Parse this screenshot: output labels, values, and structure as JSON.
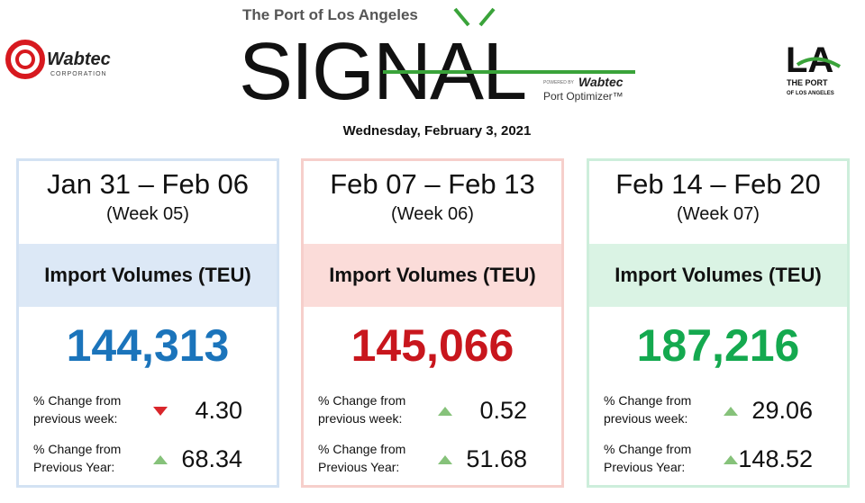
{
  "header": {
    "wabtec_logo": {
      "name": "Wabtec",
      "sub": "CORPORATION"
    },
    "kicker": "The Port of Los Angeles",
    "logo": "SIGNAL",
    "powered_by": "POWERED BY",
    "powered_brand": "Wabtec",
    "product": "Port Optimizer™",
    "la_logo": {
      "mark": "LA",
      "line1": "THE PORT",
      "line2": "OF LOS ANGELES"
    },
    "date": "Wednesday, February 3, 2021"
  },
  "cards": [
    {
      "range": "Jan 31 – Feb 06",
      "week": "(Week 05)",
      "metric": "Import Volumes (TEU)",
      "value": "144,313",
      "color": "#1b74bb",
      "band": "#dce8f6",
      "border": "#d3e2f3",
      "rows": [
        {
          "label1": "% Change from",
          "label2": "previous week:",
          "trend": "down",
          "value": "4.30"
        },
        {
          "label1": "% Change from",
          "label2": "Previous Year:",
          "trend": "up",
          "value": "68.34"
        }
      ]
    },
    {
      "range": "Feb 07 – Feb 13",
      "week": "(Week 06)",
      "metric": "Import Volumes (TEU)",
      "value": "145,066",
      "color": "#c8161d",
      "band": "#fbdcd9",
      "border": "#f6cfcb",
      "rows": [
        {
          "label1": "% Change from",
          "label2": "previous week:",
          "trend": "up",
          "value": "0.52"
        },
        {
          "label1": "% Change from",
          "label2": "Previous Year:",
          "trend": "up",
          "value": "51.68"
        }
      ]
    },
    {
      "range": "Feb 14 – Feb 20",
      "week": "(Week 07)",
      "metric": "Import Volumes (TEU)",
      "value": "187,216",
      "color": "#14a94f",
      "band": "#daf3e4",
      "border": "#cdeedb",
      "rows": [
        {
          "label1": "% Change from",
          "label2": "previous week:",
          "trend": "up",
          "value": "29.06"
        },
        {
          "label1": "% Change from",
          "label2": "Previous Year:",
          "trend": "up",
          "value": "148.52"
        }
      ]
    }
  ]
}
